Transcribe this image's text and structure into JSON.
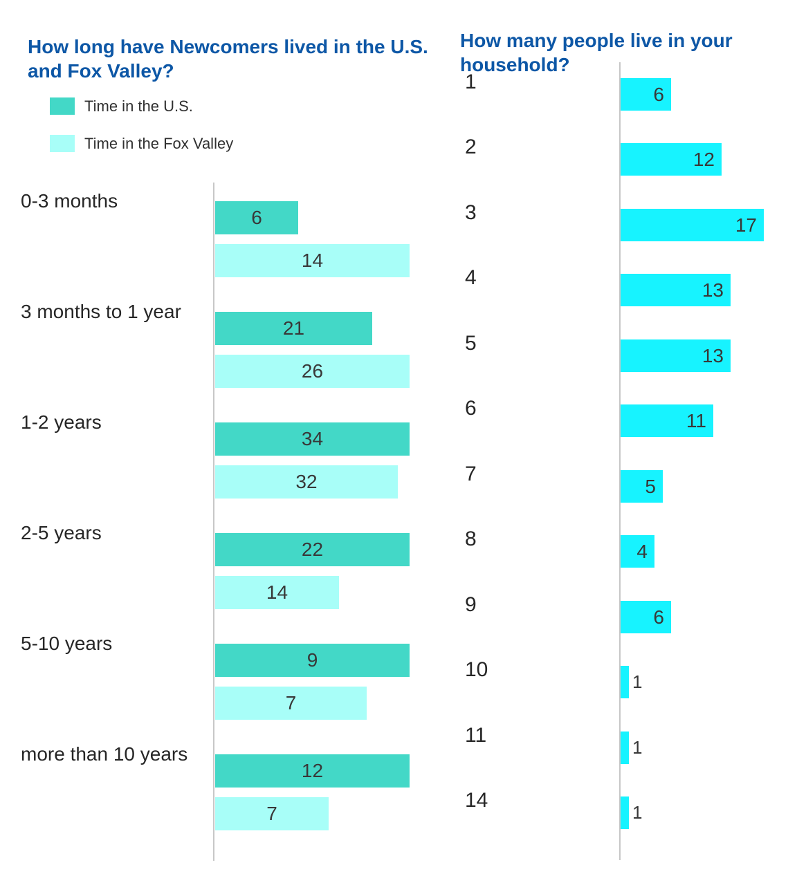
{
  "page": {
    "background": "#FFFFFF",
    "title_color": "#0D57A6",
    "axis_color": "#C7C7C7",
    "label_color": "#262626",
    "value_label_color": "#383838"
  },
  "chart_data": [
    {
      "type": "bar",
      "orientation": "horizontal",
      "title": "How long have Newcomers lived in the U.S. and Fox Valley?",
      "title_lines": [
        "How long have Newcomers lived in the U.S.",
        "and Fox Valley?"
      ],
      "categories": [
        "0-3 months",
        "3 months to 1 year",
        "1-2 years",
        "2-5 years",
        "5-10 years",
        "more than 10 years"
      ],
      "series": [
        {
          "name": "Time in the U.S.",
          "color": "#43D8C7",
          "values": [
            6,
            21,
            34,
            22,
            9,
            12
          ]
        },
        {
          "name": "Time in the Fox Valley",
          "color": "#A8FEF8",
          "values": [
            14,
            26,
            32,
            14,
            7,
            7
          ]
        }
      ],
      "legend_position": "top-left",
      "grid": false,
      "value_label_position": "inside-center",
      "bar_scaling": "normalized-per-category: the longer bar of each pair spans the full plot width"
    },
    {
      "type": "bar",
      "orientation": "horizontal",
      "title": "How many people live in your household?",
      "title_lines": [
        "How many people live in your",
        "household?"
      ],
      "categories": [
        "1",
        "2",
        "3",
        "4",
        "5",
        "6",
        "7",
        "8",
        "9",
        "10",
        "11",
        "14"
      ],
      "values": [
        6,
        12,
        17,
        13,
        13,
        11,
        5,
        4,
        6,
        1,
        1,
        1
      ],
      "series_color": "#17F3FF",
      "xlim": [
        0,
        17
      ],
      "grid": false,
      "value_label_position": "inside-right; outside-right for bars of value 1"
    }
  ]
}
